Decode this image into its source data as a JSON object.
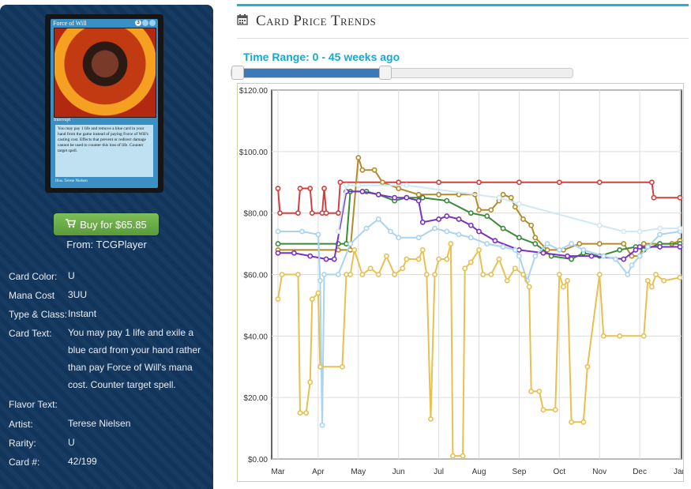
{
  "card": {
    "name": "Force of Will",
    "type_line": "Interrupt",
    "text": "You may pay 1 life and remove a blue card in your hand from the game instead of paying Force of Will's casting cost. Effects that prevent or redirect damage cannot be used to counter this loss of life. Counter target spell.",
    "artist_line": "Illus. Terese Nielsen"
  },
  "buy": {
    "label": "Buy for $65.85",
    "icon": "shopping-cart-icon",
    "from": "From: TCGPlayer"
  },
  "details": [
    {
      "label": "Card Color:",
      "value": "U"
    },
    {
      "label": "Mana Cost",
      "value": "3UU"
    },
    {
      "label": "Type & Class:",
      "value": "Instant"
    },
    {
      "label": "Card Text:",
      "value": "You may pay 1 life and exile a blue card from your hand rather than pay Force of Will's mana cost. Counter target spell."
    },
    {
      "label": "Flavor Text:",
      "value": ""
    },
    {
      "label": "Artist:",
      "value": "Terese Nielsen"
    },
    {
      "label": "Rarity:",
      "value": "U"
    },
    {
      "label": "Card #:",
      "value": "42/199"
    }
  ],
  "header": {
    "title": "Card Price Trends",
    "icon": "calendar-icon"
  },
  "time_range": {
    "label": "Time Range: 0 - 45 weeks ago",
    "min": 0,
    "max_selected": 45,
    "max": 100
  },
  "colors": {
    "accent": "#1fb3d7",
    "panel": "#12365e",
    "button": "#6aac46"
  },
  "chart_data": {
    "type": "line",
    "title": "",
    "xlabel": "",
    "ylabel": "",
    "ylim": [
      0,
      120
    ],
    "yticks": [
      "$0.00",
      "$20.00",
      "$40.00",
      "$60.00",
      "$80.00",
      "$100.00",
      "$120.00"
    ],
    "ytick_values": [
      0,
      20,
      40,
      60,
      80,
      100,
      120
    ],
    "xticks": [
      "Mar",
      "Apr",
      "May",
      "Jun",
      "Jul",
      "Aug",
      "Sep",
      "Oct",
      "Nov",
      "Dec",
      "Jan"
    ],
    "xlim": [
      0,
      10
    ],
    "grid": true,
    "series": [
      {
        "color": "#d04040",
        "points": [
          [
            0,
            88
          ],
          [
            0.05,
            80
          ],
          [
            0.5,
            80
          ],
          [
            0.55,
            88
          ],
          [
            0.8,
            88
          ],
          [
            0.85,
            80
          ],
          [
            1.1,
            80
          ],
          [
            1.15,
            88
          ],
          [
            1.2,
            80
          ],
          [
            1.5,
            80
          ],
          [
            1.55,
            90
          ],
          [
            3,
            90
          ],
          [
            4,
            90
          ],
          [
            5,
            90
          ],
          [
            6,
            90
          ],
          [
            7,
            90
          ],
          [
            8,
            90
          ],
          [
            9.3,
            90
          ],
          [
            9.35,
            85
          ],
          [
            10,
            85
          ]
        ]
      },
      {
        "color": "#b38a2a",
        "points": [
          [
            0,
            68
          ],
          [
            1.5,
            68
          ],
          [
            1.8,
            68
          ],
          [
            2.0,
            98
          ],
          [
            2.1,
            94
          ],
          [
            2.4,
            94
          ],
          [
            2.6,
            90
          ],
          [
            3.0,
            88
          ],
          [
            3.5,
            86
          ],
          [
            4.0,
            86
          ],
          [
            4.5,
            86
          ],
          [
            4.9,
            86
          ],
          [
            5.0,
            81
          ],
          [
            5.3,
            81
          ],
          [
            5.5,
            84
          ],
          [
            5.6,
            86
          ],
          [
            5.8,
            85
          ],
          [
            5.9,
            82
          ],
          [
            6.1,
            78
          ],
          [
            6.3,
            76
          ],
          [
            6.4,
            72
          ],
          [
            6.7,
            68
          ],
          [
            7.1,
            68
          ],
          [
            7.5,
            70
          ],
          [
            8.0,
            70
          ],
          [
            8.6,
            70
          ],
          [
            8.8,
            66
          ],
          [
            9.0,
            66
          ],
          [
            9.1,
            70
          ],
          [
            9.8,
            70
          ],
          [
            10,
            71
          ]
        ]
      },
      {
        "color": "#3a8a3a",
        "points": [
          [
            0,
            70
          ],
          [
            1.5,
            70
          ],
          [
            1.7,
            70
          ],
          [
            1.8,
            87
          ],
          [
            2.2,
            87
          ],
          [
            2.5,
            86
          ],
          [
            2.9,
            84
          ],
          [
            3.2,
            85
          ],
          [
            3.6,
            85
          ],
          [
            4.2,
            84
          ],
          [
            4.8,
            80
          ],
          [
            5.2,
            79
          ],
          [
            5.6,
            75
          ],
          [
            6.0,
            72
          ],
          [
            6.4,
            70
          ],
          [
            6.8,
            66
          ],
          [
            7.3,
            65
          ],
          [
            7.6,
            67
          ],
          [
            8.0,
            66
          ],
          [
            8.5,
            68
          ],
          [
            8.9,
            69
          ],
          [
            9.1,
            68
          ],
          [
            9.5,
            70
          ],
          [
            10,
            70
          ]
        ]
      },
      {
        "color": "#7a30c0",
        "points": [
          [
            0,
            67
          ],
          [
            0.4,
            67
          ],
          [
            0.8,
            66
          ],
          [
            1.2,
            65
          ],
          [
            1.4,
            65
          ],
          [
            1.7,
            87
          ],
          [
            2.1,
            87
          ],
          [
            2.5,
            86
          ],
          [
            2.9,
            85
          ],
          [
            3.2,
            85
          ],
          [
            3.5,
            84
          ],
          [
            3.6,
            77
          ],
          [
            4.0,
            78
          ],
          [
            4.2,
            79
          ],
          [
            4.5,
            78
          ],
          [
            4.8,
            76
          ],
          [
            5.0,
            74
          ],
          [
            5.4,
            71
          ],
          [
            6.0,
            68
          ],
          [
            6.6,
            67
          ],
          [
            7.2,
            66
          ],
          [
            7.8,
            66
          ],
          [
            8.6,
            65
          ],
          [
            8.9,
            68
          ],
          [
            9.0,
            69
          ],
          [
            9.5,
            69
          ],
          [
            10,
            69
          ]
        ]
      },
      {
        "color": "#a8d4f0",
        "points": [
          [
            0,
            74
          ],
          [
            0.6,
            74
          ],
          [
            1.0,
            73
          ],
          [
            1.05,
            58
          ],
          [
            1.1,
            11
          ],
          [
            1.15,
            60
          ],
          [
            1.5,
            60
          ],
          [
            1.8,
            70
          ],
          [
            2.2,
            75
          ],
          [
            2.5,
            78
          ],
          [
            2.8,
            74
          ],
          [
            3.0,
            72
          ],
          [
            3.5,
            72
          ],
          [
            3.9,
            75
          ],
          [
            4.2,
            74
          ],
          [
            4.5,
            73
          ],
          [
            4.8,
            72
          ],
          [
            5.2,
            70
          ],
          [
            5.6,
            69
          ],
          [
            5.9,
            68
          ],
          [
            6.0,
            66
          ],
          [
            6.2,
            58
          ],
          [
            6.4,
            66
          ],
          [
            6.7,
            70
          ],
          [
            7.0,
            68
          ],
          [
            7.3,
            70
          ],
          [
            7.6,
            68
          ],
          [
            8.1,
            66
          ],
          [
            8.4,
            65
          ],
          [
            8.7,
            60
          ],
          [
            8.8,
            63
          ],
          [
            9.0,
            66
          ],
          [
            9.2,
            69
          ],
          [
            9.5,
            73
          ],
          [
            10,
            74
          ]
        ]
      },
      {
        "color": "#cfe8f4",
        "points": [
          [
            1.5,
            74
          ],
          [
            1.7,
            89
          ],
          [
            2.0,
            89
          ],
          [
            3.2,
            89
          ],
          [
            5.5,
            85
          ],
          [
            6.0,
            83
          ],
          [
            8.0,
            76
          ],
          [
            8.6,
            74
          ],
          [
            9.0,
            74
          ],
          [
            9.5,
            75
          ],
          [
            10,
            75
          ]
        ]
      },
      {
        "color": "#e8c050",
        "points": [
          [
            0,
            52
          ],
          [
            0.1,
            60
          ],
          [
            0.5,
            60
          ],
          [
            0.55,
            15
          ],
          [
            0.7,
            15
          ],
          [
            0.8,
            25
          ],
          [
            0.85,
            52
          ],
          [
            1.0,
            54
          ],
          [
            1.05,
            30
          ],
          [
            1.6,
            30
          ],
          [
            1.7,
            60
          ],
          [
            1.8,
            60
          ],
          [
            1.9,
            68
          ],
          [
            2.1,
            60
          ],
          [
            2.3,
            62
          ],
          [
            2.5,
            60
          ],
          [
            2.7,
            66
          ],
          [
            2.9,
            60
          ],
          [
            3.1,
            62
          ],
          [
            3.2,
            65
          ],
          [
            3.5,
            65
          ],
          [
            3.6,
            68
          ],
          [
            3.7,
            60
          ],
          [
            3.8,
            13
          ],
          [
            3.9,
            60
          ],
          [
            4.0,
            65
          ],
          [
            4.2,
            65
          ],
          [
            4.3,
            70
          ],
          [
            4.35,
            1
          ],
          [
            4.6,
            1
          ],
          [
            4.65,
            62
          ],
          [
            4.8,
            64
          ],
          [
            5.0,
            68
          ],
          [
            5.1,
            60
          ],
          [
            5.3,
            60
          ],
          [
            5.5,
            65
          ],
          [
            5.7,
            58
          ],
          [
            5.9,
            62
          ],
          [
            6.1,
            60
          ],
          [
            6.25,
            56
          ],
          [
            6.3,
            22
          ],
          [
            6.5,
            22
          ],
          [
            6.6,
            16
          ],
          [
            6.9,
            16
          ],
          [
            7.0,
            60
          ],
          [
            7.1,
            56
          ],
          [
            7.2,
            58
          ],
          [
            7.3,
            12
          ],
          [
            7.6,
            12
          ],
          [
            7.7,
            30
          ],
          [
            8.0,
            60
          ],
          [
            8.1,
            40
          ],
          [
            8.5,
            40
          ],
          [
            9.1,
            40
          ],
          [
            9.2,
            58
          ],
          [
            9.3,
            56
          ],
          [
            9.4,
            60
          ],
          [
            9.6,
            58
          ],
          [
            10,
            59
          ]
        ]
      }
    ]
  }
}
